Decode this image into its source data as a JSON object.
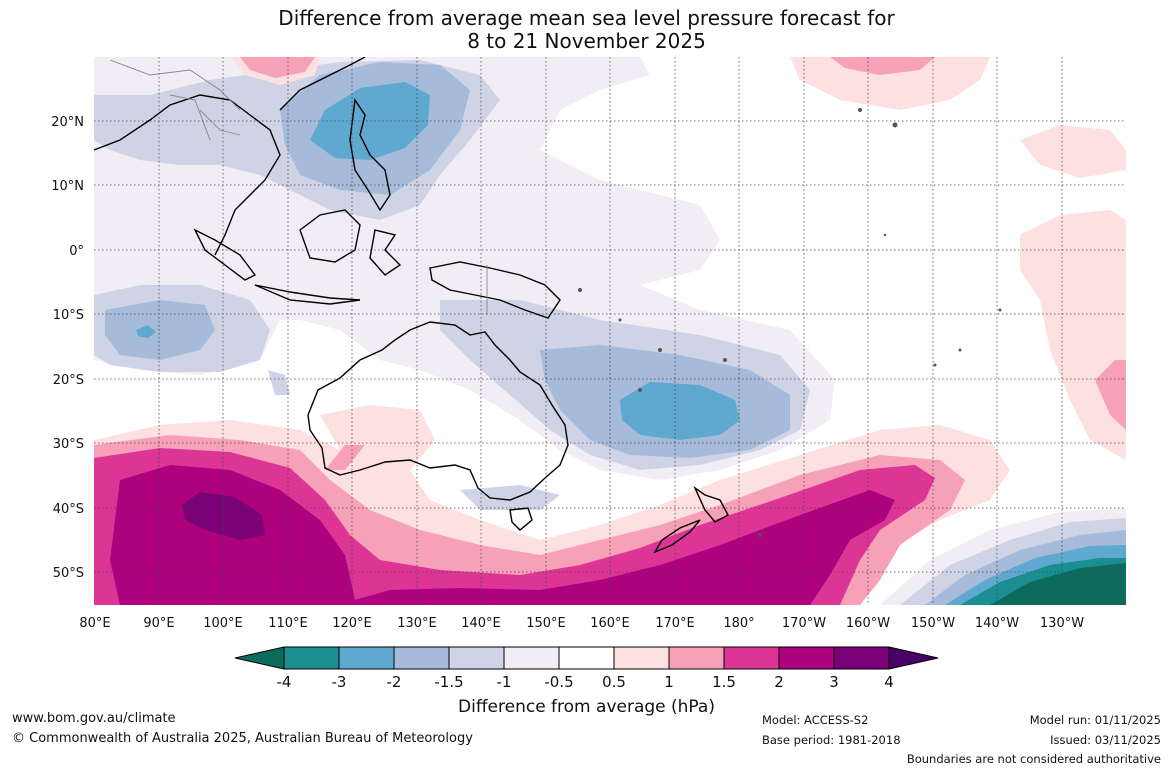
{
  "title": {
    "line1": "Difference from average mean sea level pressure forecast for",
    "line2": "8 to 21 November 2025"
  },
  "axes": {
    "lat_labels": [
      "20°N",
      "10°N",
      "0°",
      "10°S",
      "20°S",
      "30°S",
      "40°S",
      "50°S"
    ],
    "lon_labels": [
      "80°E",
      "90°E",
      "100°E",
      "110°E",
      "120°E",
      "130°E",
      "140°E",
      "150°E",
      "160°E",
      "170°E",
      "180°",
      "170°W",
      "160°W",
      "150°W",
      "140°W",
      "130°W"
    ]
  },
  "colorbar": {
    "title": "Difference from average (hPa)",
    "ticks": [
      "-4",
      "-3",
      "-2",
      "-1.5",
      "-1",
      "-0.5",
      "0.5",
      "1",
      "1.5",
      "2",
      "3",
      "4"
    ],
    "colors": [
      "#0d6b5e",
      "#1b8e92",
      "#5fa8cf",
      "#a6bad9",
      "#cfd3e6",
      "#f2ecf5",
      "#ffffff",
      "#fde0e0",
      "#f7a1b9",
      "#dc3596",
      "#ae017e",
      "#7a0177",
      "#4a0066"
    ]
  },
  "footer": {
    "url": "www.bom.gov.au/climate",
    "copyright": "© Commonwealth of Australia 2025, Australian Bureau of Meteorology",
    "model": "Model: ACCESS-S2",
    "base_period": "Base period: 1981-2018",
    "model_run": "Model run: 01/11/2025",
    "issued": "Issued: 03/11/2025",
    "disclaimer": "Boundaries are not considered authoritative"
  }
}
